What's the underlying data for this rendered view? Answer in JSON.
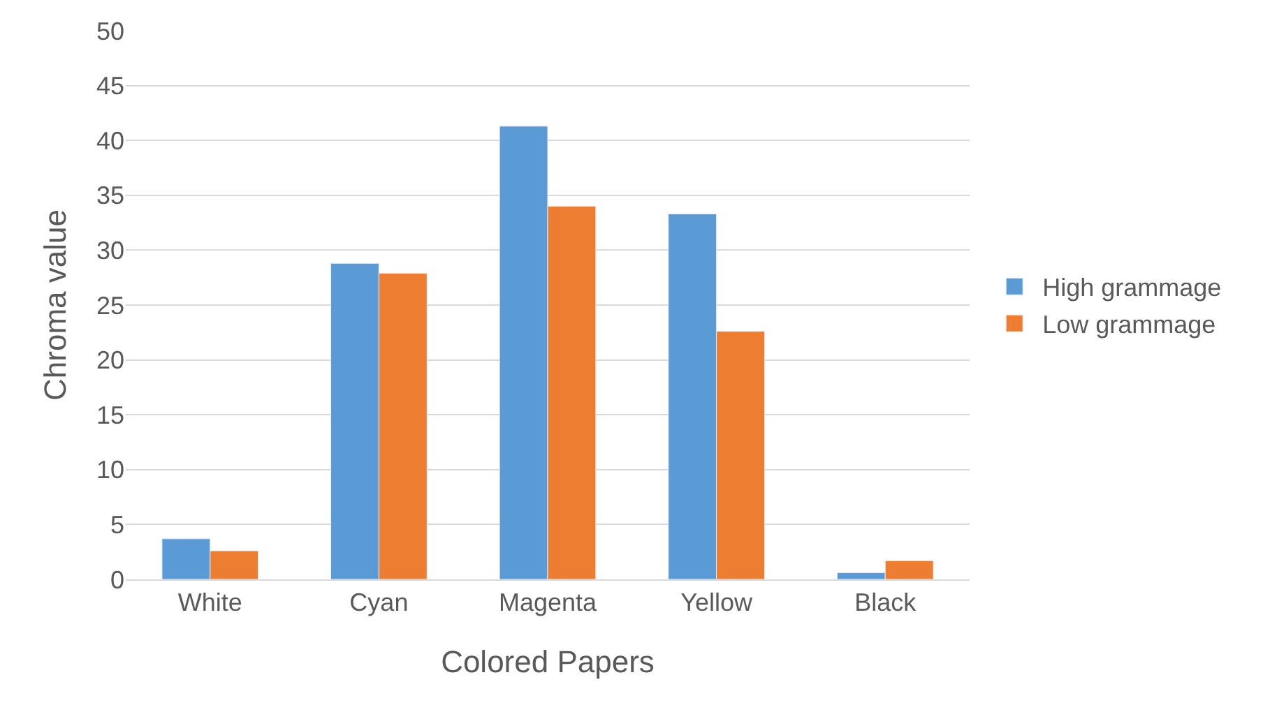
{
  "chart_data": {
    "type": "bar",
    "xlabel": "Colored Papers",
    "ylabel": "Chroma value",
    "categories": [
      "White",
      "Cyan",
      "Magenta",
      "Yellow",
      "Black"
    ],
    "series": [
      {
        "name": "High grammage",
        "color": "#5b9bd5",
        "values": [
          3.7,
          28.8,
          41.3,
          33.3,
          0.6
        ]
      },
      {
        "name": "Low grammage",
        "color": "#ed7d31",
        "values": [
          2.6,
          27.9,
          34.0,
          22.6,
          1.7
        ]
      }
    ],
    "ylim": [
      0,
      50
    ],
    "yticks": [
      0,
      5,
      10,
      15,
      20,
      25,
      30,
      35,
      40,
      45,
      50
    ],
    "grid": "y",
    "legend": "right"
  }
}
